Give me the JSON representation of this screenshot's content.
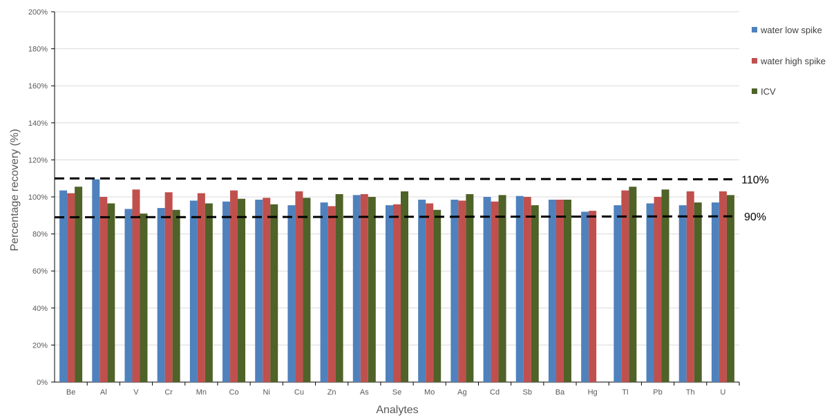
{
  "chart_data": {
    "type": "bar",
    "xlabel": "Analytes",
    "ylabel": "Percentage recovery (%)",
    "ylim": [
      0,
      200
    ],
    "y_ticks": [
      "0%",
      "20%",
      "40%",
      "60%",
      "80%",
      "100%",
      "120%",
      "140%",
      "160%",
      "180%",
      "200%"
    ],
    "grid": true,
    "legend_position": "right",
    "categories": [
      "Be",
      "Al",
      "V",
      "Cr",
      "Mn",
      "Co",
      "Ni",
      "Cu",
      "Zn",
      "As",
      "Se",
      "Mo",
      "Ag",
      "Cd",
      "Sb",
      "Ba",
      "Hg",
      "Tl",
      "Pb",
      "Th",
      "U"
    ],
    "series": [
      {
        "name": "water low spike",
        "color": "#4f81bd",
        "values": [
          103.5,
          109.5,
          93.5,
          94,
          98,
          97.5,
          98.5,
          95.5,
          97,
          101,
          95.5,
          98.5,
          98.5,
          100,
          100.5,
          98.5,
          92,
          95.5,
          96.5,
          95.5,
          97
        ]
      },
      {
        "name": "water high spike",
        "color": "#c0504d",
        "values": [
          102,
          100,
          104,
          102.5,
          102,
          103.5,
          99.5,
          103,
          95,
          101.5,
          96,
          96.5,
          98,
          97.5,
          100,
          98.5,
          92.5,
          103.5,
          100,
          103,
          103
        ]
      },
      {
        "name": "ICV",
        "color": "#4f6228",
        "values": [
          105.5,
          96.5,
          91,
          93,
          96.5,
          99,
          96,
          99.5,
          101.5,
          100,
          103,
          93,
          101.5,
          101,
          95.5,
          98.5,
          null,
          105.5,
          104,
          97,
          101
        ]
      }
    ],
    "reference_lines": [
      {
        "label": "110%",
        "start": 110,
        "end": 109.5
      },
      {
        "label": "90%",
        "start": 89,
        "end": 89.5
      }
    ]
  }
}
